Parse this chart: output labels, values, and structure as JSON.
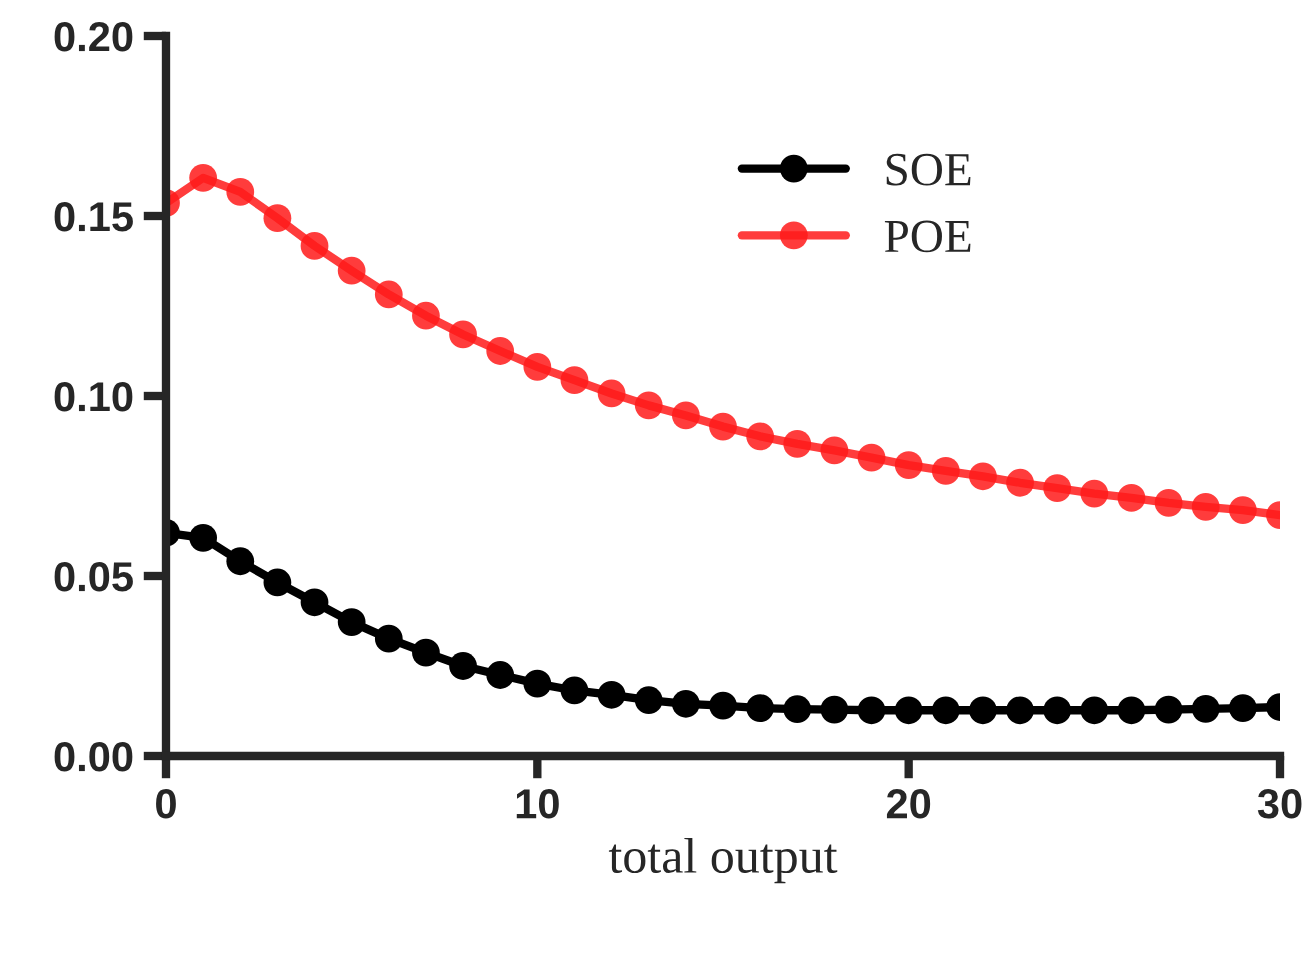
{
  "chart_data": {
    "type": "line",
    "xlabel": "total output",
    "x": [
      0,
      1,
      2,
      3,
      4,
      5,
      6,
      7,
      8,
      9,
      10,
      11,
      12,
      13,
      14,
      15,
      16,
      17,
      18,
      19,
      20,
      21,
      22,
      23,
      24,
      25,
      26,
      27,
      28,
      29,
      30
    ],
    "series": [
      {
        "name": "SOE",
        "color": "#000000",
        "values": [
          0.062,
          0.0606,
          0.0541,
          0.0482,
          0.0427,
          0.0372,
          0.0326,
          0.0287,
          0.025,
          0.0225,
          0.0201,
          0.0182,
          0.017,
          0.0155,
          0.0145,
          0.014,
          0.0133,
          0.013,
          0.0129,
          0.0127,
          0.0127,
          0.0127,
          0.0127,
          0.0127,
          0.0127,
          0.0127,
          0.0127,
          0.0129,
          0.0131,
          0.0133,
          0.0136
        ]
      },
      {
        "name": "POE",
        "color": "#ff1a1a",
        "values": [
          0.1536,
          0.1606,
          0.1567,
          0.1494,
          0.1417,
          0.1348,
          0.1282,
          0.1223,
          0.1171,
          0.1125,
          0.1081,
          0.1044,
          0.1007,
          0.0974,
          0.0946,
          0.0915,
          0.0888,
          0.0867,
          0.0849,
          0.0829,
          0.0808,
          0.0792,
          0.0777,
          0.0759,
          0.0744,
          0.0729,
          0.0717,
          0.0703,
          0.0692,
          0.0683,
          0.0669
        ]
      }
    ],
    "xlim": [
      0,
      30
    ],
    "xticks": [
      0,
      10,
      20,
      30
    ],
    "ylim": [
      0,
      0.2
    ],
    "yticks": [
      {
        "value": 0,
        "label": "0.00"
      },
      {
        "value": 0.05,
        "label": "0.05"
      },
      {
        "value": 0.1,
        "label": "0.10"
      },
      {
        "value": 0.15,
        "label": "0.15"
      },
      {
        "value": 0.2,
        "label": "0.20"
      }
    ],
    "grid": false,
    "legend": "top right",
    "marker": "circle",
    "line_style": "solid"
  }
}
